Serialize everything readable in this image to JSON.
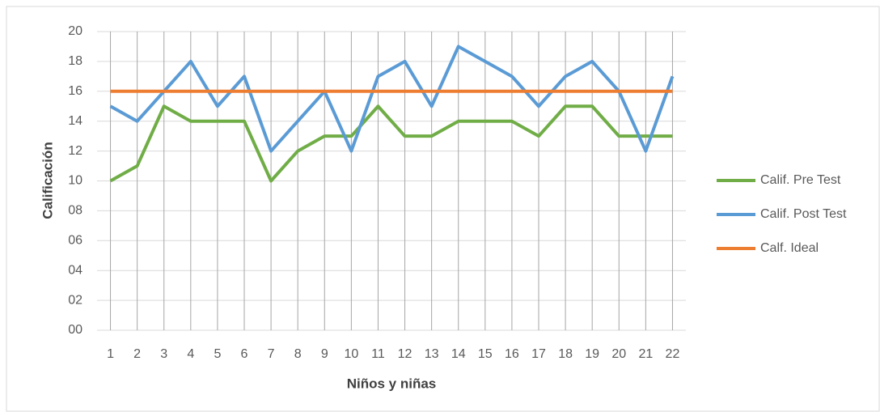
{
  "chart_data": {
    "type": "line",
    "x_label": "Niños y niñas",
    "y_label": "Calificación",
    "categories": [
      1,
      2,
      3,
      4,
      5,
      6,
      7,
      8,
      9,
      10,
      11,
      12,
      13,
      14,
      15,
      16,
      17,
      18,
      19,
      20,
      21,
      22
    ],
    "series": [
      {
        "name": "Calif. Pre Test",
        "color": "#70ad47",
        "values": [
          10,
          11,
          15,
          14,
          14,
          14,
          10,
          12,
          13,
          13,
          15,
          13,
          13,
          14,
          14,
          14,
          13,
          15,
          15,
          13,
          13,
          13
        ]
      },
      {
        "name": "Calif. Post Test",
        "color": "#5b9bd5",
        "values": [
          15,
          14,
          16,
          18,
          15,
          17,
          12,
          14,
          16,
          12,
          17,
          18,
          15,
          19,
          18,
          17,
          15,
          17,
          18,
          16,
          12,
          17
        ]
      },
      {
        "name": "Calf. Ideal",
        "color": "#ed7d31",
        "values": [
          16,
          16,
          16,
          16,
          16,
          16,
          16,
          16,
          16,
          16,
          16,
          16,
          16,
          16,
          16,
          16,
          16,
          16,
          16,
          16,
          16,
          16
        ]
      }
    ],
    "ylim": [
      0,
      20
    ],
    "yticks": [
      {
        "value": 0,
        "label": "00"
      },
      {
        "value": 2,
        "label": "02"
      },
      {
        "value": 4,
        "label": "04"
      },
      {
        "value": 6,
        "label": "06"
      },
      {
        "value": 8,
        "label": "08"
      },
      10,
      12,
      14,
      16,
      18,
      20
    ],
    "grid": true,
    "legend": "right"
  }
}
